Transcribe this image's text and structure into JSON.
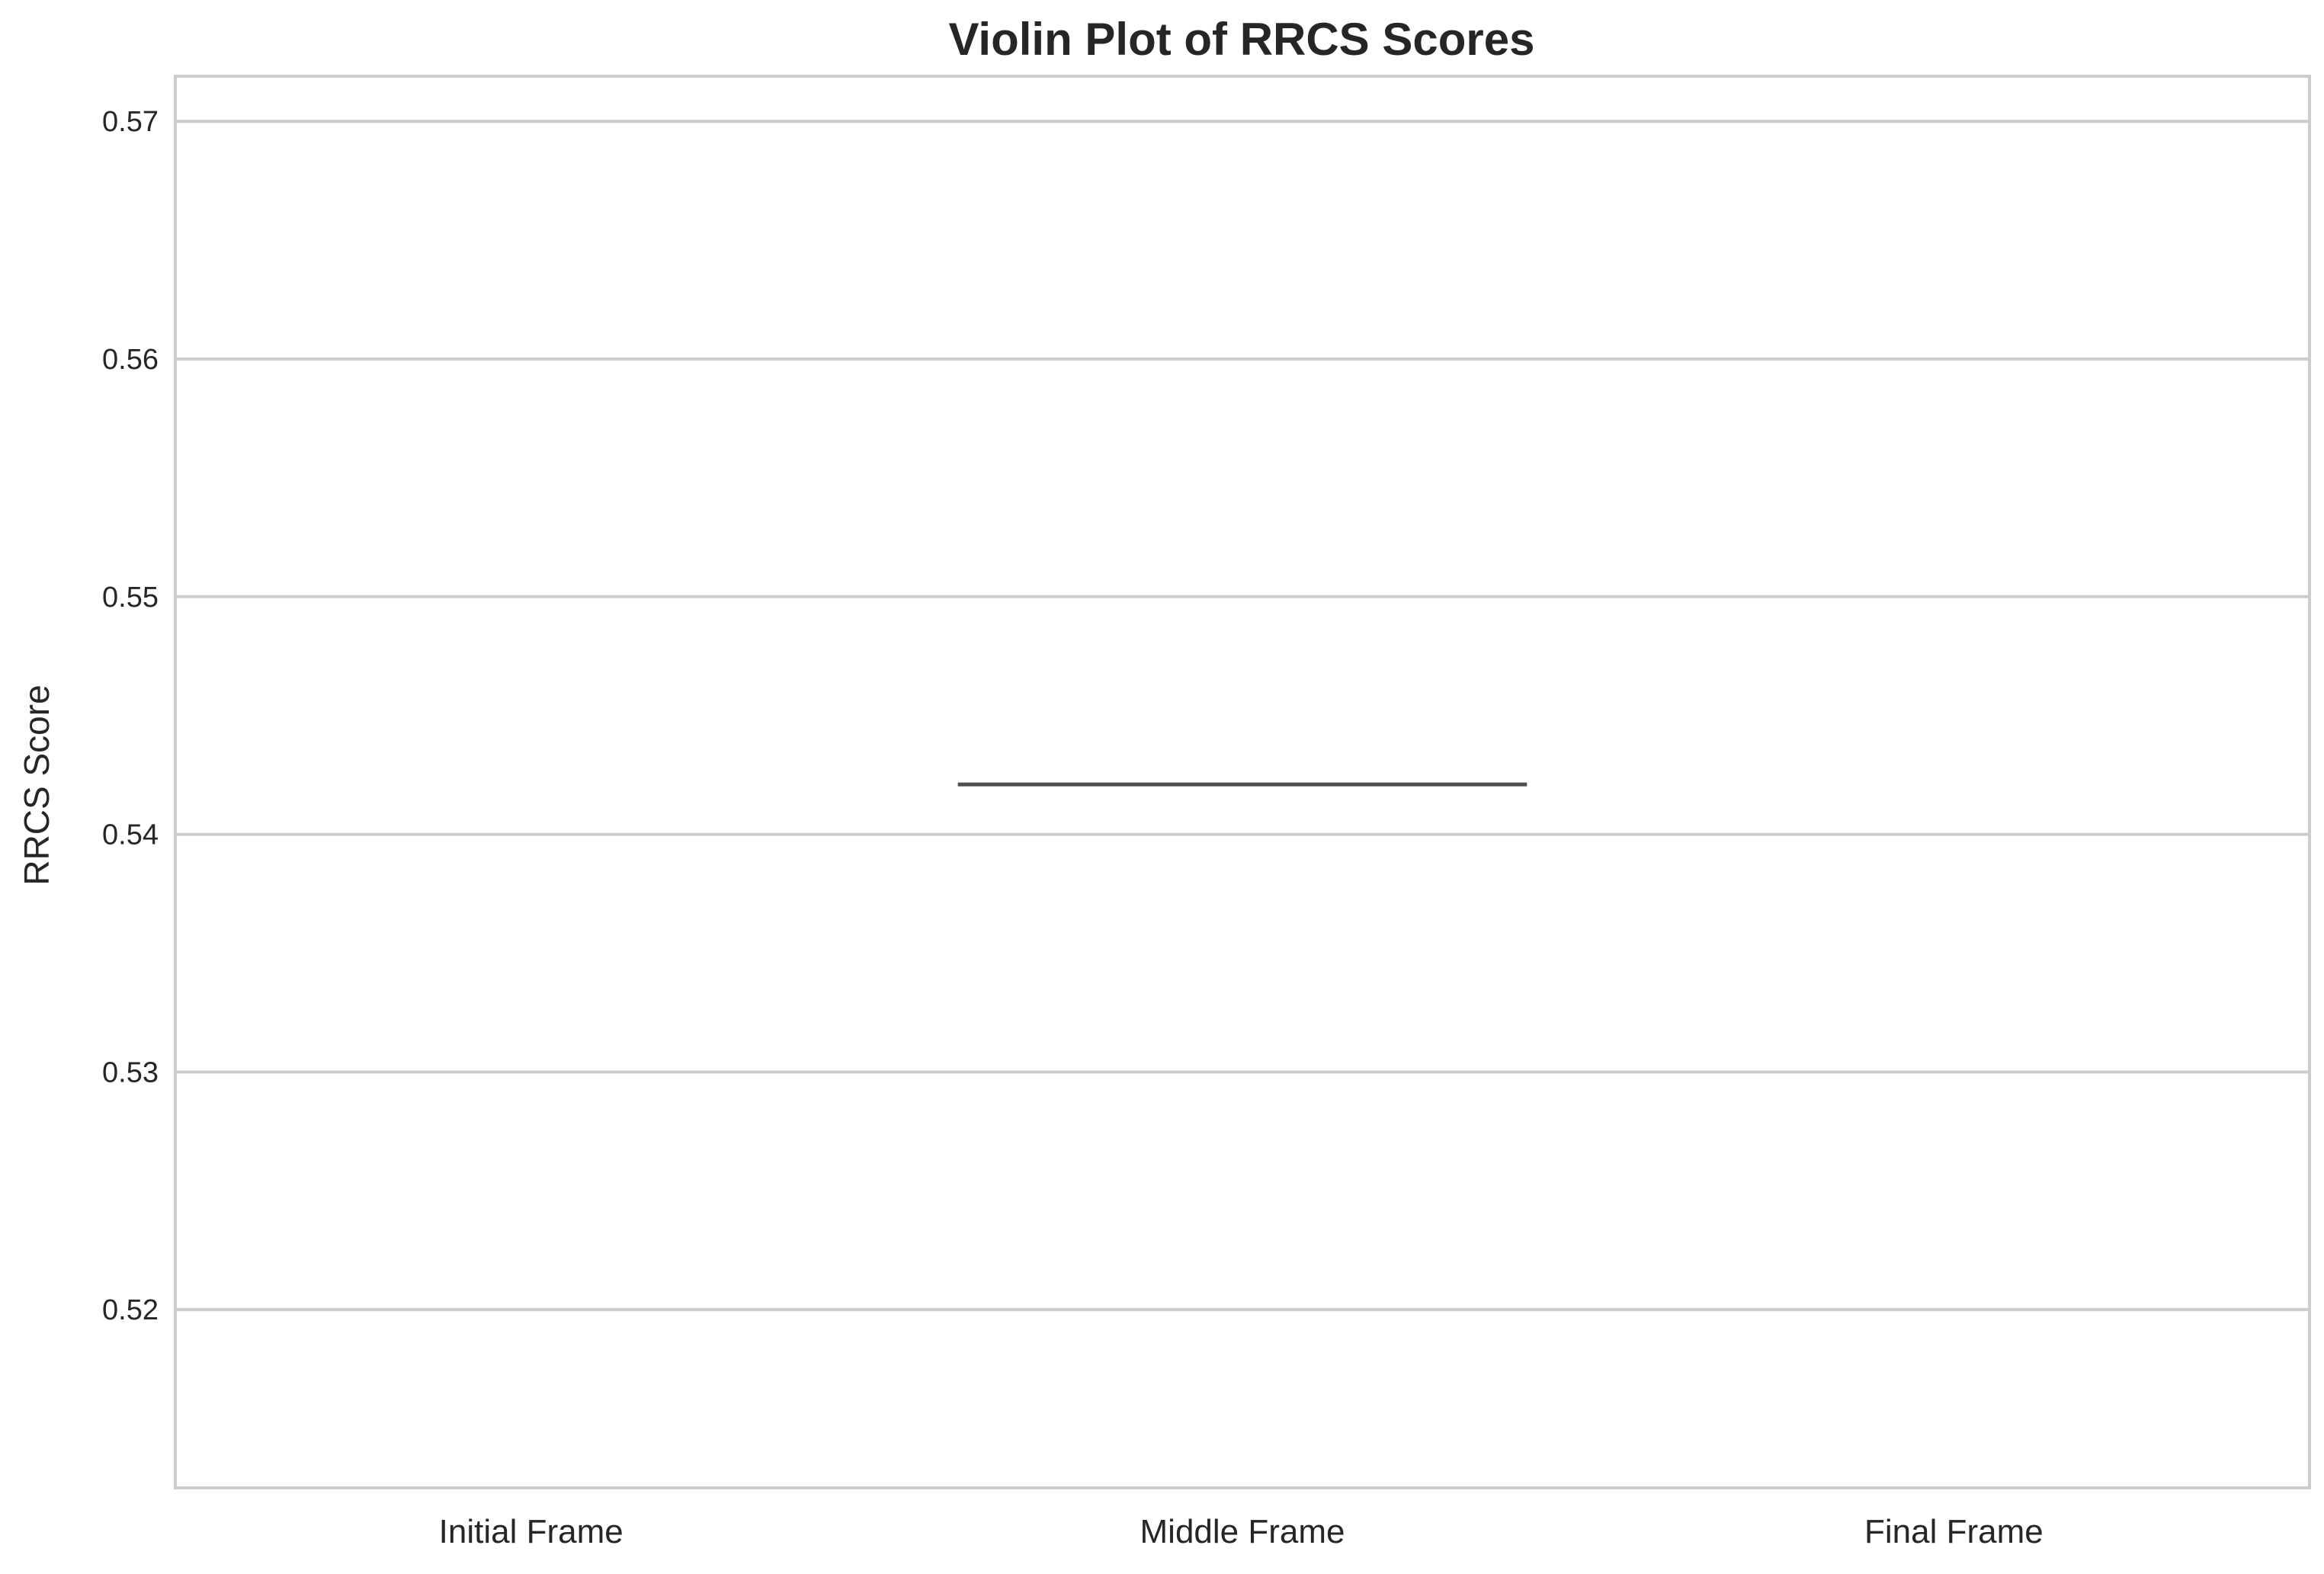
{
  "chart_data": {
    "type": "violin",
    "title": "Violin Plot of RRCS Scores",
    "xlabel": "",
    "ylabel": "RRCS Score",
    "categories": [
      "Initial Frame",
      "Middle Frame",
      "Final Frame"
    ],
    "ylim": [
      0.5125,
      0.5719
    ],
    "yticks": [
      0.52,
      0.53,
      0.54,
      0.55,
      0.56,
      0.57
    ],
    "ytick_labels": [
      "0.52",
      "0.53",
      "0.54",
      "0.55",
      "0.56",
      "0.57"
    ],
    "grid": "horizontal",
    "series": [
      {
        "values": [
          null,
          0.5421,
          null
        ]
      }
    ],
    "colors": {
      "grid": "#cccccc",
      "frame": "#cccccc",
      "mark": "#4d4d4d",
      "text": "#262626"
    }
  }
}
